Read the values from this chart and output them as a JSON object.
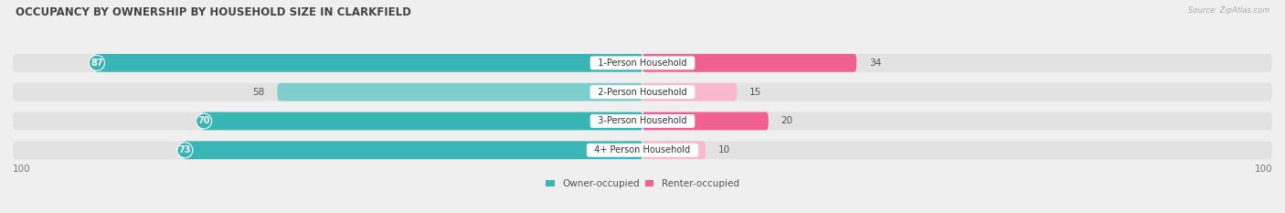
{
  "title": "OCCUPANCY BY OWNERSHIP BY HOUSEHOLD SIZE IN CLARKFIELD",
  "source": "Source: ZipAtlas.com",
  "categories": [
    "1-Person Household",
    "2-Person Household",
    "3-Person Household",
    "4+ Person Household"
  ],
  "owner_values": [
    87,
    58,
    70,
    73
  ],
  "renter_values": [
    34,
    15,
    20,
    10
  ],
  "owner_colors": [
    "#3ab5b5",
    "#7ecece",
    "#3ab5b5",
    "#3ab5b5"
  ],
  "renter_colors": [
    "#f06090",
    "#f9b8cc",
    "#f06090",
    "#f9b8cc"
  ],
  "bg_color": "#efefef",
  "bar_bg_color": "#e2e2e2",
  "axis_max": 100,
  "owner_label": "Owner-occupied",
  "renter_label": "Renter-occupied",
  "owner_legend_color": "#3ab5b5",
  "renter_legend_color": "#f06090",
  "title_fontsize": 8.5,
  "label_fontsize": 7.5,
  "tick_fontsize": 7.5,
  "bar_height": 0.62,
  "n_rows": 4
}
